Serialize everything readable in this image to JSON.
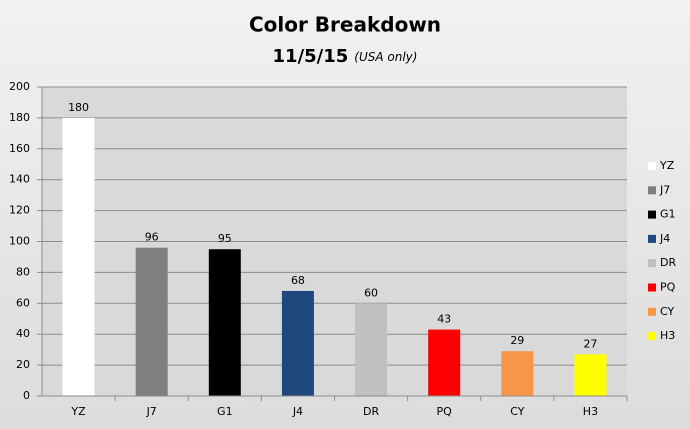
{
  "chart_data": {
    "type": "bar",
    "title": "Color Breakdown",
    "subtitle": "11/5/15",
    "subtitle_note": "(USA only)",
    "categories": [
      "YZ",
      "J7",
      "G1",
      "J4",
      "DR",
      "PQ",
      "CY",
      "H3"
    ],
    "values": [
      180,
      96,
      95,
      68,
      60,
      43,
      29,
      27
    ],
    "colors": [
      "#ffffff",
      "#7f7f7f",
      "#000000",
      "#1f497d",
      "#c0c0c0",
      "#ff0000",
      "#f79646",
      "#ffff00"
    ],
    "ylim": [
      0,
      200
    ],
    "yticks": [
      0,
      20,
      40,
      60,
      80,
      100,
      120,
      140,
      160,
      180,
      200
    ],
    "grid": true,
    "legend": "right"
  }
}
